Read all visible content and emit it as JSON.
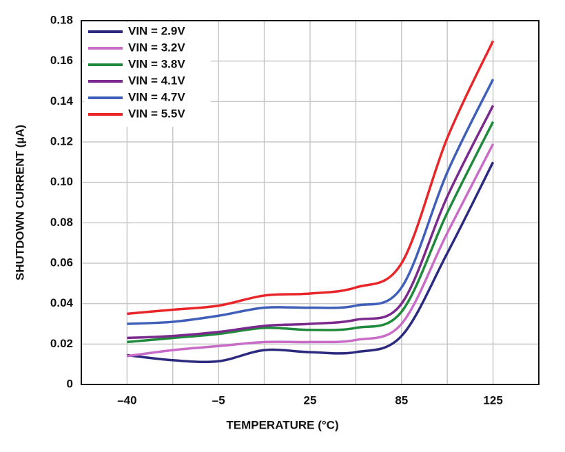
{
  "chart_data": {
    "type": "line",
    "xlabel": "TEMPERATURE (°C)",
    "ylabel": "SHUTDOWN CURRENT (µA)",
    "categories": [
      "–40",
      null,
      "–5",
      null,
      "25",
      null,
      "85",
      null,
      "125"
    ],
    "series": [
      {
        "name": "VIN = 2.9V",
        "color": "#2b2a7e",
        "values": [
          0.0145,
          0.012,
          0.0115,
          0.017,
          0.016,
          0.016,
          0.024,
          0.065,
          0.11
        ]
      },
      {
        "name": "VIN = 3.2V",
        "color": "#c86cc8",
        "values": [
          0.014,
          0.017,
          0.019,
          0.021,
          0.021,
          0.022,
          0.03,
          0.075,
          0.119
        ]
      },
      {
        "name": "VIN = 3.8V",
        "color": "#1f8a3c",
        "values": [
          0.021,
          0.023,
          0.025,
          0.028,
          0.027,
          0.028,
          0.036,
          0.085,
          0.13
        ]
      },
      {
        "name": "VIN = 4.1V",
        "color": "#7a2a8c",
        "values": [
          0.023,
          0.024,
          0.026,
          0.029,
          0.03,
          0.032,
          0.04,
          0.093,
          0.138
        ]
      },
      {
        "name": "VIN = 4.7V",
        "color": "#3f5fb8",
        "values": [
          0.03,
          0.031,
          0.034,
          0.038,
          0.038,
          0.039,
          0.048,
          0.105,
          0.151
        ]
      },
      {
        "name": "VIN = 5.5V",
        "color": "#e8262a",
        "values": [
          0.035,
          0.037,
          0.039,
          0.044,
          0.045,
          0.048,
          0.06,
          0.122,
          0.17
        ]
      }
    ],
    "ylim": [
      0,
      0.18
    ],
    "yticks": [
      0,
      0.02,
      0.04,
      0.06,
      0.08,
      {
        "value": 0.1,
        "label": "0.10"
      },
      0.12,
      0.14,
      0.16,
      0.18
    ],
    "grid": true,
    "legend": "upper left"
  }
}
